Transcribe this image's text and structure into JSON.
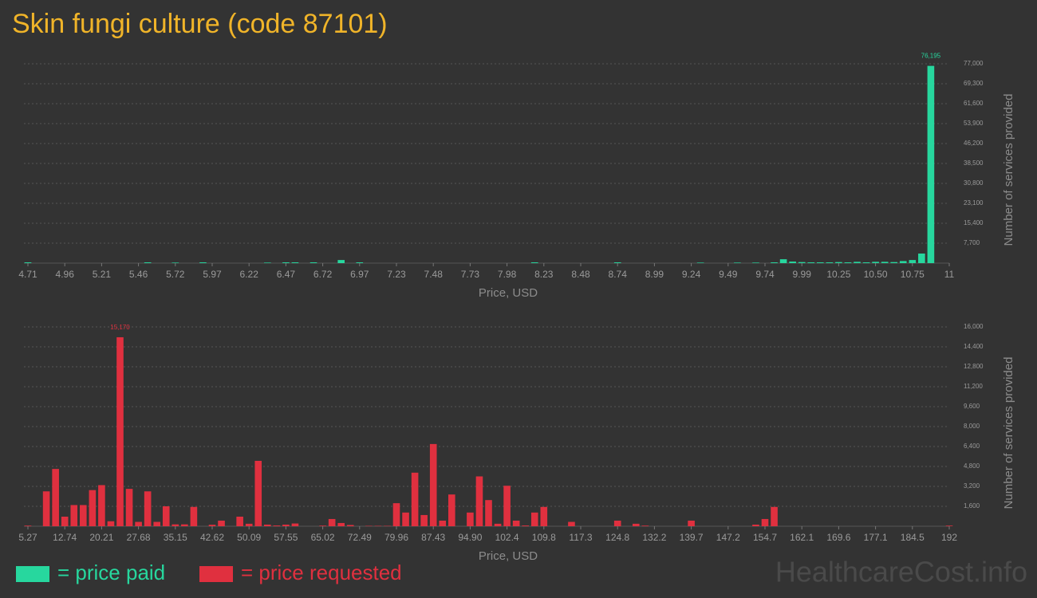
{
  "title": "Skin fungi culture (code 87101)",
  "watermark": "HealthcareCost.info",
  "chart_data": [
    {
      "type": "bar",
      "xlabel": "Price, USD",
      "ylabel": "Number of services provided",
      "grid": true,
      "ylim": [
        0,
        77000
      ],
      "yticks": [
        {
          "value": 7700,
          "label": "7,700"
        },
        {
          "value": 15400,
          "label": "15,400"
        },
        {
          "value": 23100,
          "label": "23,100"
        },
        {
          "value": 30800,
          "label": "30,800"
        },
        {
          "value": 38500,
          "label": "38,500"
        },
        {
          "value": 46200,
          "label": "46,200"
        },
        {
          "value": 53900,
          "label": "53,900"
        },
        {
          "value": 61600,
          "label": "61,600"
        },
        {
          "value": 69300,
          "label": "69,300"
        },
        {
          "value": 77000,
          "label": "77,000"
        }
      ],
      "categories": [
        "4.71",
        null,
        null,
        null,
        "4.96",
        null,
        null,
        null,
        "5.21",
        null,
        null,
        null,
        "5.46",
        null,
        null,
        null,
        "5.72",
        null,
        null,
        null,
        "5.97",
        null,
        null,
        null,
        "6.22",
        null,
        null,
        null,
        "6.47",
        null,
        null,
        null,
        "6.72",
        null,
        null,
        null,
        "6.97",
        null,
        null,
        null,
        "7.23",
        null,
        null,
        null,
        "7.48",
        null,
        null,
        null,
        "7.73",
        null,
        null,
        null,
        "7.98",
        null,
        null,
        null,
        "8.23",
        null,
        null,
        null,
        "8.48",
        null,
        null,
        null,
        "8.74",
        null,
        null,
        null,
        "8.99",
        null,
        null,
        null,
        "9.24",
        null,
        null,
        null,
        "9.49",
        null,
        null,
        null,
        "9.74",
        null,
        null,
        null,
        "9.99",
        null,
        null,
        null,
        "10.25",
        null,
        null,
        null,
        "10.50",
        null,
        null,
        null,
        "10.75",
        null,
        null,
        null,
        "11"
      ],
      "series": [
        {
          "name": "= price paid",
          "color": "#27d79e",
          "values": [
            300,
            0,
            0,
            0,
            0,
            0,
            0,
            0,
            0,
            0,
            0,
            0,
            0,
            300,
            0,
            0,
            200,
            0,
            0,
            300,
            0,
            0,
            0,
            0,
            0,
            0,
            200,
            0,
            300,
            300,
            0,
            300,
            0,
            0,
            1200,
            0,
            300,
            0,
            0,
            0,
            0,
            0,
            0,
            0,
            0,
            0,
            0,
            0,
            0,
            0,
            0,
            0,
            0,
            0,
            0,
            300,
            0,
            0,
            0,
            0,
            0,
            0,
            0,
            0,
            300,
            0,
            0,
            0,
            0,
            0,
            0,
            0,
            0,
            200,
            0,
            0,
            0,
            200,
            0,
            200,
            0,
            300,
            1500,
            600,
            400,
            300,
            300,
            300,
            400,
            300,
            500,
            300,
            500,
            500,
            400,
            800,
            1200,
            3700,
            76195,
            0,
            0
          ],
          "value_labels": [
            null,
            null,
            null,
            null,
            null,
            null,
            null,
            null,
            null,
            null,
            null,
            null,
            null,
            null,
            null,
            null,
            null,
            null,
            null,
            null,
            null,
            null,
            null,
            null,
            null,
            null,
            null,
            null,
            null,
            null,
            null,
            null,
            null,
            null,
            null,
            null,
            null,
            null,
            null,
            null,
            null,
            null,
            null,
            null,
            null,
            null,
            null,
            null,
            null,
            null,
            null,
            null,
            null,
            null,
            null,
            null,
            null,
            null,
            null,
            null,
            null,
            null,
            null,
            null,
            null,
            null,
            null,
            null,
            null,
            null,
            null,
            null,
            null,
            null,
            null,
            null,
            null,
            null,
            null,
            null,
            null,
            null,
            null,
            null,
            null,
            null,
            null,
            null,
            null,
            null,
            null,
            null,
            null,
            null,
            null,
            null,
            null,
            null,
            "76,195",
            null,
            null
          ]
        }
      ]
    },
    {
      "type": "bar",
      "xlabel": "Price, USD",
      "ylabel": "Number of services provided",
      "grid": true,
      "ylim": [
        0,
        16000
      ],
      "yticks": [
        {
          "value": 1600,
          "label": "1,600"
        },
        {
          "value": 3200,
          "label": "3,200"
        },
        {
          "value": 4800,
          "label": "4,800"
        },
        {
          "value": 6400,
          "label": "6,400"
        },
        {
          "value": 8000,
          "label": "8,000"
        },
        {
          "value": 9600,
          "label": "9,600"
        },
        {
          "value": 11200,
          "label": "11,200"
        },
        {
          "value": 12800,
          "label": "12,800"
        },
        {
          "value": 14400,
          "label": "14,400"
        },
        {
          "value": 16000,
          "label": "16,000"
        }
      ],
      "categories": [
        "5.27",
        null,
        null,
        null,
        "12.74",
        null,
        null,
        null,
        "20.21",
        null,
        null,
        null,
        "27.68",
        null,
        null,
        null,
        "35.15",
        null,
        null,
        null,
        "42.62",
        null,
        null,
        null,
        "50.09",
        null,
        null,
        null,
        "57.55",
        null,
        null,
        null,
        "65.02",
        null,
        null,
        null,
        "72.49",
        null,
        null,
        null,
        "79.96",
        null,
        null,
        null,
        "87.43",
        null,
        null,
        null,
        "94.90",
        null,
        null,
        null,
        "102.4",
        null,
        null,
        null,
        "109.8",
        null,
        null,
        null,
        "117.3",
        null,
        null,
        null,
        "124.8",
        null,
        null,
        null,
        "132.2",
        null,
        null,
        null,
        "139.7",
        null,
        null,
        null,
        "147.2",
        null,
        null,
        null,
        "154.7",
        null,
        null,
        null,
        "162.1",
        null,
        null,
        null,
        "169.6",
        null,
        null,
        null,
        "177.1",
        null,
        null,
        null,
        "184.5",
        null,
        null,
        null,
        "192"
      ],
      "series": [
        {
          "name": "= price requested",
          "color": "#e0303f",
          "values": [
            50,
            0,
            2800,
            4600,
            770,
            1700,
            1700,
            2900,
            3300,
            400,
            15170,
            3000,
            350,
            2800,
            350,
            1600,
            150,
            150,
            1550,
            0,
            120,
            450,
            0,
            770,
            200,
            5250,
            130,
            60,
            130,
            220,
            0,
            0,
            50,
            580,
            260,
            100,
            0,
            30,
            30,
            30,
            1850,
            1100,
            4300,
            900,
            6600,
            450,
            2550,
            0,
            1100,
            4000,
            2100,
            200,
            3250,
            450,
            60,
            1100,
            1550,
            0,
            0,
            350,
            0,
            0,
            0,
            0,
            450,
            0,
            200,
            50,
            0,
            0,
            0,
            0,
            450,
            0,
            0,
            0,
            0,
            0,
            0,
            130,
            580,
            1550,
            0,
            0,
            0,
            0,
            0,
            0,
            0,
            0,
            0,
            0,
            0,
            0,
            0,
            0,
            0,
            0,
            0,
            0,
            50
          ],
          "value_labels": [
            null,
            null,
            null,
            null,
            null,
            null,
            null,
            null,
            null,
            null,
            "15,170",
            null,
            null,
            null,
            null,
            null,
            null,
            null,
            null,
            null,
            null,
            null,
            null,
            null,
            null,
            null,
            null,
            null,
            null,
            null,
            null,
            null,
            null,
            null,
            null,
            null,
            null,
            null,
            null,
            null,
            null,
            null,
            null,
            null,
            null,
            null,
            null,
            null,
            null,
            null,
            null,
            null,
            null,
            null,
            null,
            null,
            null,
            null,
            null,
            null,
            null,
            null,
            null,
            null,
            null,
            null,
            null,
            null,
            null,
            null,
            null,
            null,
            null,
            null,
            null,
            null,
            null,
            null,
            null,
            null,
            null,
            null,
            null,
            null,
            null,
            null,
            null,
            null,
            null,
            null,
            null,
            null,
            null,
            null,
            null,
            null,
            null,
            null,
            null,
            null,
            null
          ]
        }
      ]
    }
  ]
}
